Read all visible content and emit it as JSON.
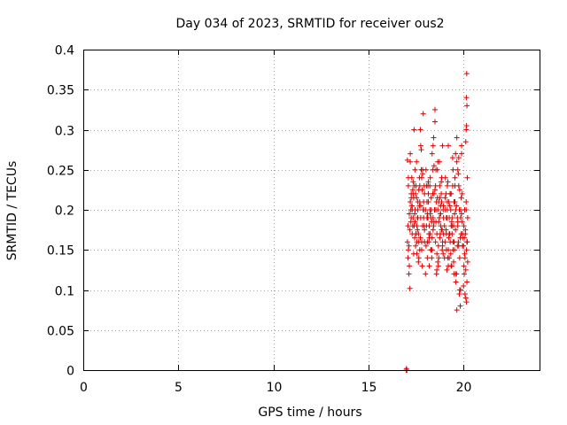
{
  "chart_data": {
    "type": "scatter",
    "title": "Day 034 of 2023, SRMTID for receiver ous2",
    "xlabel": "GPS time / hours",
    "ylabel": "SRMTID / TECUs",
    "xlim": [
      0,
      24
    ],
    "ylim": [
      0,
      0.4
    ],
    "xticks": [
      0,
      5,
      10,
      15,
      20
    ],
    "xtick_labels": [
      "0",
      "5",
      "10",
      "15",
      "20"
    ],
    "yticks": [
      0,
      0.05,
      0.1,
      0.15,
      0.2,
      0.25,
      0.3,
      0.35,
      0.4
    ],
    "ytick_labels": [
      "0",
      "0.05",
      "0.1",
      "0.15",
      "0.2",
      "0.25",
      "0.3",
      "0.35",
      "0.4"
    ],
    "grid": true,
    "marker": "+",
    "color": "#dd0000",
    "series": [
      {
        "x": [
          16.98,
          17.0,
          17.02,
          17.05,
          17.1,
          17.15,
          17.2,
          17.25,
          17.3,
          17.35,
          17.4,
          17.45,
          17.5,
          17.55,
          17.6,
          17.65,
          17.7,
          17.75,
          17.8,
          17.85,
          17.9,
          17.95,
          17.05,
          17.1,
          17.15,
          17.2,
          17.25,
          17.3,
          17.35,
          17.4,
          17.45,
          17.5,
          17.55,
          17.6,
          17.65,
          17.7,
          17.75,
          17.8,
          17.85,
          17.9,
          17.95,
          17.08,
          17.13,
          17.18,
          17.23,
          17.28,
          17.33,
          17.38,
          17.43,
          17.48,
          17.53,
          17.58,
          17.63,
          17.68,
          17.73,
          17.78,
          17.83,
          17.88,
          17.93,
          17.08,
          17.13,
          17.18,
          17.23,
          17.28,
          17.33,
          17.38,
          17.43,
          17.48,
          17.53,
          17.58,
          17.63,
          17.68,
          17.73,
          17.78,
          17.83,
          17.88,
          17.93,
          17.1,
          17.2,
          17.3,
          17.4,
          17.5,
          17.6,
          17.7,
          17.8,
          17.9,
          17.15,
          17.25,
          17.35,
          17.45,
          17.55,
          17.65,
          17.75,
          17.85,
          17.95,
          18.0,
          18.05,
          18.1,
          18.15,
          18.2,
          18.25,
          18.3,
          18.35,
          18.4,
          18.45,
          18.5,
          18.55,
          18.6,
          18.65,
          18.7,
          18.75,
          18.8,
          18.85,
          18.9,
          18.95,
          18.0,
          18.05,
          18.1,
          18.15,
          18.2,
          18.25,
          18.3,
          18.35,
          18.4,
          18.45,
          18.5,
          18.55,
          18.6,
          18.65,
          18.7,
          18.75,
          18.8,
          18.85,
          18.9,
          18.95,
          18.03,
          18.08,
          18.13,
          18.18,
          18.23,
          18.28,
          18.33,
          18.38,
          18.43,
          18.48,
          18.53,
          18.58,
          18.63,
          18.68,
          18.73,
          18.78,
          18.83,
          18.88,
          18.93,
          18.03,
          18.08,
          18.13,
          18.18,
          18.23,
          18.28,
          18.33,
          18.38,
          18.43,
          18.48,
          18.53,
          18.58,
          18.63,
          18.68,
          18.73,
          18.78,
          18.83,
          18.88,
          18.93,
          18.1,
          18.2,
          18.3,
          18.4,
          18.5,
          18.6,
          18.7,
          18.8,
          18.9,
          18.15,
          18.25,
          18.35,
          18.45,
          18.55,
          18.65,
          18.75,
          18.85,
          18.95,
          19.0,
          19.05,
          19.1,
          19.15,
          19.2,
          19.25,
          19.3,
          19.35,
          19.4,
          19.45,
          19.5,
          19.55,
          19.6,
          19.65,
          19.7,
          19.75,
          19.8,
          19.85,
          19.9,
          19.95,
          19.0,
          19.05,
          19.1,
          19.15,
          19.2,
          19.25,
          19.3,
          19.35,
          19.4,
          19.45,
          19.5,
          19.55,
          19.6,
          19.65,
          19.7,
          19.75,
          19.8,
          19.85,
          19.9,
          19.95,
          19.03,
          19.08,
          19.13,
          19.18,
          19.23,
          19.28,
          19.33,
          19.38,
          19.43,
          19.48,
          19.53,
          19.58,
          19.63,
          19.68,
          19.73,
          19.78,
          19.83,
          19.88,
          19.93,
          19.03,
          19.08,
          19.13,
          19.18,
          19.23,
          19.28,
          19.33,
          19.38,
          19.43,
          19.48,
          19.53,
          19.58,
          19.63,
          19.68,
          19.73,
          19.78,
          19.83,
          19.88,
          19.93,
          19.1,
          19.2,
          19.3,
          19.4,
          19.5,
          19.6,
          19.7,
          19.8,
          19.9,
          19.15,
          19.25,
          19.35,
          19.45,
          19.55,
          19.65,
          19.75,
          19.85,
          19.95,
          20.0,
          20.02,
          20.04,
          20.06,
          20.08,
          20.1,
          20.12,
          20.14,
          20.16,
          20.18,
          20.2,
          20.22,
          20.0,
          20.02,
          20.04,
          20.06,
          20.08,
          20.1,
          20.12,
          20.14,
          20.16,
          20.18,
          20.2,
          20.22,
          20.12,
          20.14,
          20.16,
          20.18,
          20.15,
          20.17
        ],
        "y": [
          0.0,
          0.002,
          0.0,
          0.262,
          0.23,
          0.195,
          0.27,
          0.22,
          0.205,
          0.19,
          0.3,
          0.25,
          0.23,
          0.18,
          0.2,
          0.16,
          0.21,
          0.28,
          0.24,
          0.25,
          0.19,
          0.22,
          0.16,
          0.15,
          0.13,
          0.21,
          0.19,
          0.17,
          0.22,
          0.18,
          0.2,
          0.17,
          0.16,
          0.21,
          0.14,
          0.23,
          0.19,
          0.15,
          0.18,
          0.2,
          0.16,
          0.18,
          0.155,
          0.175,
          0.2,
          0.24,
          0.18,
          0.215,
          0.165,
          0.22,
          0.26,
          0.19,
          0.17,
          0.24,
          0.3,
          0.25,
          0.13,
          0.2,
          0.23,
          0.14,
          0.12,
          0.102,
          0.185,
          0.205,
          0.225,
          0.145,
          0.195,
          0.155,
          0.215,
          0.175,
          0.135,
          0.205,
          0.165,
          0.275,
          0.225,
          0.32,
          0.18,
          0.24,
          0.26,
          0.2,
          0.23,
          0.17,
          0.19,
          0.15,
          0.16,
          0.21,
          0.195,
          0.215,
          0.235,
          0.185,
          0.145,
          0.225,
          0.205,
          0.245,
          0.175,
          0.2,
          0.23,
          0.16,
          0.21,
          0.18,
          0.24,
          0.15,
          0.27,
          0.19,
          0.22,
          0.31,
          0.25,
          0.17,
          0.2,
          0.14,
          0.23,
          0.18,
          0.21,
          0.16,
          0.19,
          0.12,
          0.18,
          0.14,
          0.22,
          0.13,
          0.17,
          0.2,
          0.15,
          0.28,
          0.185,
          0.325,
          0.2,
          0.145,
          0.26,
          0.21,
          0.165,
          0.195,
          0.24,
          0.28,
          0.17,
          0.25,
          0.21,
          0.19,
          0.16,
          0.23,
          0.19,
          0.14,
          0.22,
          0.18,
          0.2,
          0.16,
          0.21,
          0.25,
          0.13,
          0.19,
          0.17,
          0.22,
          0.15,
          0.2,
          0.155,
          0.19,
          0.23,
          0.17,
          0.2,
          0.15,
          0.185,
          0.25,
          0.29,
          0.2,
          0.23,
          0.12,
          0.215,
          0.155,
          0.26,
          0.195,
          0.235,
          0.175,
          0.145,
          0.195,
          0.165,
          0.215,
          0.175,
          0.225,
          0.125,
          0.185,
          0.205,
          0.155,
          0.235,
          0.195,
          0.165,
          0.255,
          0.185,
          0.135,
          0.215,
          0.175,
          0.205,
          0.18,
          0.24,
          0.15,
          0.2,
          0.28,
          0.17,
          0.22,
          0.13,
          0.19,
          0.25,
          0.16,
          0.21,
          0.12,
          0.26,
          0.18,
          0.23,
          0.14,
          0.2,
          0.27,
          0.17,
          0.14,
          0.2,
          0.17,
          0.23,
          0.13,
          0.19,
          0.16,
          0.22,
          0.18,
          0.15,
          0.21,
          0.24,
          0.11,
          0.29,
          0.185,
          0.155,
          0.225,
          0.1,
          0.195,
          0.165,
          0.215,
          0.175,
          0.125,
          0.235,
          0.165,
          0.205,
          0.145,
          0.185,
          0.265,
          0.135,
          0.195,
          0.175,
          0.205,
          0.155,
          0.245,
          0.095,
          0.165,
          0.215,
          0.185,
          0.16,
          0.22,
          0.19,
          0.14,
          0.21,
          0.17,
          0.2,
          0.13,
          0.23,
          0.18,
          0.15,
          0.27,
          0.12,
          0.19,
          0.16,
          0.2,
          0.08,
          0.17,
          0.22,
          0.19,
          0.15,
          0.22,
          0.17,
          0.12,
          0.2,
          0.25,
          0.1,
          0.28,
          0.21,
          0.14,
          0.18,
          0.16,
          0.23,
          0.075,
          0.265,
          0.19,
          0.155,
          0.155,
          0.18,
          0.12,
          0.2,
          0.14,
          0.17,
          0.09,
          0.21,
          0.15,
          0.11,
          0.16,
          0.19,
          0.105,
          0.13,
          0.165,
          0.145,
          0.095,
          0.175,
          0.125,
          0.2,
          0.085,
          0.16,
          0.24,
          0.135,
          0.285,
          0.3,
          0.305,
          0.33,
          0.34,
          0.37
        ]
      }
    ]
  }
}
